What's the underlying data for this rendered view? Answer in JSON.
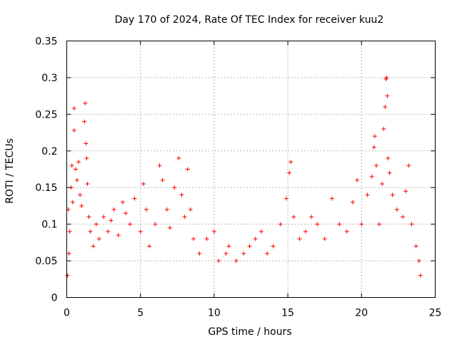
{
  "chart_data": {
    "type": "scatter",
    "title": "Day 170 of 2024, Rate Of TEC Index for receiver kuu2",
    "xlabel": "GPS time / hours",
    "ylabel": "ROTI / TECUs",
    "xlim": [
      0,
      25
    ],
    "ylim": [
      0,
      0.35
    ],
    "x_ticks": [
      "0",
      "5",
      "10",
      "15",
      "20",
      "25"
    ],
    "y_ticks": [
      "0",
      "0.05",
      "0.1",
      "0.15",
      "0.2",
      "0.25",
      "0.3",
      "0.35"
    ],
    "grid": true,
    "marker": "+",
    "color": "#ff0000",
    "series": [
      {
        "points": [
          [
            0.05,
            0.03
          ],
          [
            0.1,
            0.12
          ],
          [
            0.15,
            0.06
          ],
          [
            0.2,
            0.09
          ],
          [
            0.3,
            0.15
          ],
          [
            0.35,
            0.18
          ],
          [
            0.4,
            0.13
          ],
          [
            0.5,
            0.258
          ],
          [
            0.5,
            0.228
          ],
          [
            0.6,
            0.175
          ],
          [
            0.7,
            0.16
          ],
          [
            0.8,
            0.185
          ],
          [
            0.9,
            0.14
          ],
          [
            1.0,
            0.125
          ],
          [
            1.2,
            0.24
          ],
          [
            1.25,
            0.265
          ],
          [
            1.3,
            0.21
          ],
          [
            1.35,
            0.19
          ],
          [
            1.4,
            0.155
          ],
          [
            1.5,
            0.11
          ],
          [
            1.6,
            0.09
          ],
          [
            1.8,
            0.07
          ],
          [
            2.0,
            0.1
          ],
          [
            2.2,
            0.08
          ],
          [
            2.5,
            0.11
          ],
          [
            2.8,
            0.09
          ],
          [
            3.0,
            0.105
          ],
          [
            3.2,
            0.12
          ],
          [
            3.5,
            0.085
          ],
          [
            3.8,
            0.13
          ],
          [
            4.0,
            0.115
          ],
          [
            4.3,
            0.1
          ],
          [
            4.6,
            0.135
          ],
          [
            5.0,
            0.09
          ],
          [
            5.2,
            0.155
          ],
          [
            5.4,
            0.12
          ],
          [
            5.6,
            0.07
          ],
          [
            6.0,
            0.1
          ],
          [
            6.3,
            0.18
          ],
          [
            6.5,
            0.16
          ],
          [
            6.8,
            0.12
          ],
          [
            7.0,
            0.095
          ],
          [
            7.3,
            0.15
          ],
          [
            7.6,
            0.19
          ],
          [
            7.8,
            0.14
          ],
          [
            8.0,
            0.11
          ],
          [
            8.2,
            0.175
          ],
          [
            8.4,
            0.12
          ],
          [
            8.6,
            0.08
          ],
          [
            9.0,
            0.06
          ],
          [
            9.5,
            0.08
          ],
          [
            10.0,
            0.09
          ],
          [
            10.3,
            0.05
          ],
          [
            10.8,
            0.06
          ],
          [
            11.0,
            0.07
          ],
          [
            11.5,
            0.05
          ],
          [
            12.0,
            0.06
          ],
          [
            12.4,
            0.07
          ],
          [
            12.8,
            0.08
          ],
          [
            13.2,
            0.09
          ],
          [
            13.6,
            0.06
          ],
          [
            14.0,
            0.07
          ],
          [
            14.5,
            0.1
          ],
          [
            14.9,
            0.135
          ],
          [
            15.1,
            0.17
          ],
          [
            15.2,
            0.185
          ],
          [
            15.4,
            0.11
          ],
          [
            15.8,
            0.08
          ],
          [
            16.2,
            0.09
          ],
          [
            16.6,
            0.11
          ],
          [
            17.0,
            0.1
          ],
          [
            17.5,
            0.08
          ],
          [
            18.0,
            0.135
          ],
          [
            18.5,
            0.1
          ],
          [
            19.0,
            0.09
          ],
          [
            19.4,
            0.13
          ],
          [
            19.7,
            0.16
          ],
          [
            20.0,
            0.1
          ],
          [
            20.4,
            0.14
          ],
          [
            20.7,
            0.165
          ],
          [
            20.85,
            0.205
          ],
          [
            20.9,
            0.22
          ],
          [
            21.0,
            0.18
          ],
          [
            21.2,
            0.1
          ],
          [
            21.4,
            0.155
          ],
          [
            21.5,
            0.23
          ],
          [
            21.6,
            0.26
          ],
          [
            21.65,
            0.298
          ],
          [
            21.7,
            0.3
          ],
          [
            21.75,
            0.275
          ],
          [
            21.8,
            0.19
          ],
          [
            21.9,
            0.17
          ],
          [
            22.1,
            0.14
          ],
          [
            22.4,
            0.12
          ],
          [
            22.8,
            0.11
          ],
          [
            23.0,
            0.145
          ],
          [
            23.2,
            0.18
          ],
          [
            23.4,
            0.1
          ],
          [
            23.7,
            0.07
          ],
          [
            23.9,
            0.05
          ],
          [
            24.0,
            0.03
          ]
        ]
      }
    ]
  }
}
